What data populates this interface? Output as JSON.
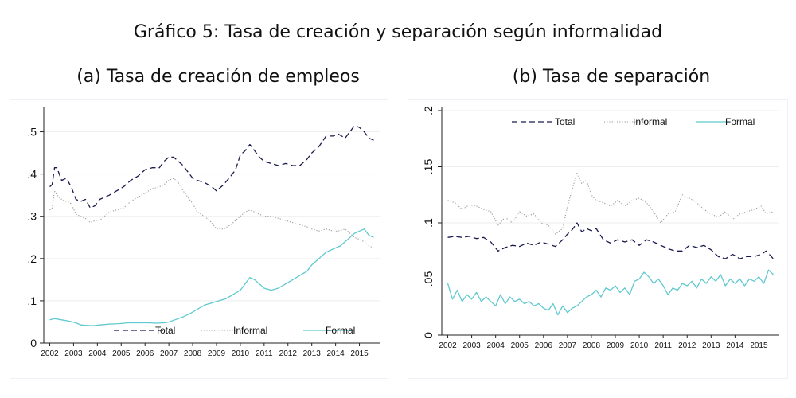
{
  "header": {
    "title": "Gráfico 5: Tasa de creación y separación según informalidad"
  },
  "colors": {
    "total": "#1a1a4e",
    "informal": "#9a9a9a",
    "formal": "#5fc9cf",
    "grid": "#eeeeee"
  },
  "chart_data": [
    {
      "type": "line",
      "title": "(a) Tasa de creación de empleos",
      "xlabel": "",
      "ylabel": "",
      "xlim": [
        2001.75,
        2015.85
      ],
      "ylim": [
        0,
        0.55
      ],
      "yticks": [
        0,
        0.1,
        0.2,
        0.3,
        0.4,
        0.5
      ],
      "ytick_labels": [
        "0",
        ".1",
        ".2",
        ".3",
        ".4",
        ".5"
      ],
      "xticks": [
        2002,
        2003,
        2004,
        2005,
        2006,
        2007,
        2008,
        2009,
        2010,
        2011,
        2012,
        2013,
        2014,
        2015
      ],
      "xtick_labels": [
        "2002",
        "2003",
        "2004",
        "2005",
        "2006",
        "2007",
        "2008",
        "2009",
        "2010",
        "2011",
        "2012",
        "2013",
        "2014",
        "2015"
      ],
      "legend": {
        "position": "bottom",
        "entries": [
          "Total",
          "Informal",
          "Formal"
        ]
      },
      "series": [
        {
          "name": "Total",
          "style": "dashed",
          "color_key": "total",
          "x": [
            2002.0,
            2002.1,
            2002.2,
            2002.3,
            2002.5,
            2002.7,
            2002.9,
            2003.1,
            2003.3,
            2003.5,
            2003.7,
            2003.9,
            2004.1,
            2004.3,
            2004.5,
            2004.8,
            2005.1,
            2005.4,
            2005.7,
            2006.0,
            2006.3,
            2006.6,
            2006.8,
            2007.0,
            2007.2,
            2007.4,
            2007.6,
            2007.8,
            2008.0,
            2008.2,
            2008.5,
            2008.8,
            2009.0,
            2009.3,
            2009.6,
            2009.8,
            2010.0,
            2010.2,
            2010.4,
            2010.6,
            2010.8,
            2011.0,
            2011.3,
            2011.6,
            2011.9,
            2012.2,
            2012.5,
            2012.8,
            2013.0,
            2013.3,
            2013.6,
            2013.9,
            2014.1,
            2014.4,
            2014.6,
            2014.8,
            2015.0,
            2015.2,
            2015.4,
            2015.6
          ],
          "values": [
            0.37,
            0.375,
            0.415,
            0.415,
            0.385,
            0.39,
            0.37,
            0.34,
            0.335,
            0.34,
            0.32,
            0.325,
            0.34,
            0.345,
            0.35,
            0.36,
            0.37,
            0.385,
            0.395,
            0.41,
            0.415,
            0.415,
            0.43,
            0.44,
            0.44,
            0.43,
            0.42,
            0.405,
            0.39,
            0.385,
            0.38,
            0.37,
            0.36,
            0.375,
            0.395,
            0.41,
            0.445,
            0.455,
            0.47,
            0.455,
            0.44,
            0.43,
            0.425,
            0.42,
            0.425,
            0.42,
            0.42,
            0.435,
            0.45,
            0.465,
            0.49,
            0.49,
            0.495,
            0.485,
            0.5,
            0.515,
            0.51,
            0.5,
            0.485,
            0.48
          ]
        },
        {
          "name": "Informal",
          "style": "dotted",
          "color_key": "informal",
          "x": [
            2002.0,
            2002.1,
            2002.2,
            2002.3,
            2002.5,
            2002.7,
            2002.9,
            2003.1,
            2003.3,
            2003.5,
            2003.7,
            2003.9,
            2004.1,
            2004.3,
            2004.5,
            2004.8,
            2005.1,
            2005.4,
            2005.7,
            2006.0,
            2006.3,
            2006.6,
            2006.8,
            2007.0,
            2007.2,
            2007.4,
            2007.6,
            2007.8,
            2008.0,
            2008.2,
            2008.5,
            2008.8,
            2009.0,
            2009.3,
            2009.6,
            2009.8,
            2010.0,
            2010.2,
            2010.4,
            2010.6,
            2010.8,
            2011.0,
            2011.3,
            2011.6,
            2011.9,
            2012.2,
            2012.5,
            2012.8,
            2013.0,
            2013.3,
            2013.6,
            2013.9,
            2014.1,
            2014.4,
            2014.6,
            2014.8,
            2015.0,
            2015.2,
            2015.4,
            2015.6
          ],
          "values": [
            0.315,
            0.32,
            0.36,
            0.35,
            0.34,
            0.335,
            0.33,
            0.305,
            0.3,
            0.295,
            0.285,
            0.29,
            0.29,
            0.3,
            0.31,
            0.315,
            0.32,
            0.335,
            0.345,
            0.355,
            0.365,
            0.37,
            0.375,
            0.385,
            0.39,
            0.38,
            0.36,
            0.345,
            0.33,
            0.31,
            0.3,
            0.285,
            0.27,
            0.27,
            0.28,
            0.29,
            0.3,
            0.31,
            0.315,
            0.31,
            0.305,
            0.3,
            0.3,
            0.295,
            0.29,
            0.285,
            0.28,
            0.275,
            0.27,
            0.265,
            0.27,
            0.265,
            0.265,
            0.27,
            0.26,
            0.25,
            0.245,
            0.24,
            0.23,
            0.225
          ]
        },
        {
          "name": "Formal",
          "style": "solid",
          "color_key": "formal",
          "x": [
            2002.0,
            2002.2,
            2002.5,
            2002.8,
            2003.1,
            2003.3,
            2003.5,
            2003.8,
            2004.1,
            2004.5,
            2004.9,
            2005.3,
            2005.7,
            2006.1,
            2006.5,
            2006.8,
            2007.0,
            2007.3,
            2007.6,
            2007.9,
            2008.2,
            2008.5,
            2008.8,
            2009.1,
            2009.4,
            2009.7,
            2010.0,
            2010.2,
            2010.4,
            2010.6,
            2010.8,
            2011.0,
            2011.3,
            2011.6,
            2011.9,
            2012.2,
            2012.5,
            2012.8,
            2013.0,
            2013.2,
            2013.4,
            2013.6,
            2013.8,
            2014.0,
            2014.2,
            2014.4,
            2014.6,
            2014.8,
            2015.0,
            2015.2,
            2015.4,
            2015.6
          ],
          "values": [
            0.055,
            0.058,
            0.055,
            0.052,
            0.048,
            0.043,
            0.042,
            0.041,
            0.043,
            0.045,
            0.046,
            0.048,
            0.048,
            0.048,
            0.047,
            0.048,
            0.05,
            0.056,
            0.062,
            0.07,
            0.08,
            0.09,
            0.095,
            0.1,
            0.105,
            0.115,
            0.125,
            0.14,
            0.155,
            0.15,
            0.14,
            0.13,
            0.125,
            0.13,
            0.14,
            0.15,
            0.16,
            0.17,
            0.185,
            0.195,
            0.205,
            0.215,
            0.22,
            0.225,
            0.23,
            0.24,
            0.25,
            0.26,
            0.265,
            0.27,
            0.255,
            0.25
          ]
        }
      ]
    },
    {
      "type": "line",
      "title": "(b) Tasa de separación",
      "xlabel": "",
      "ylabel": "",
      "xlim": [
        2001.75,
        2015.85
      ],
      "ylim": [
        0,
        0.2
      ],
      "yticks": [
        0,
        0.05,
        0.1,
        0.15,
        0.2
      ],
      "ytick_labels": [
        "0",
        ".05",
        ".1",
        ".15",
        ".2"
      ],
      "xticks": [
        2002,
        2003,
        2004,
        2005,
        2006,
        2007,
        2008,
        2009,
        2010,
        2011,
        2012,
        2013,
        2014,
        2015
      ],
      "xtick_labels": [
        "2002",
        "2003",
        "2004",
        "2005",
        "2006",
        "2007",
        "2008",
        "2009",
        "2010",
        "2011",
        "2012",
        "2013",
        "2014",
        "2015"
      ],
      "legend": {
        "position": "top",
        "entries": [
          "Total",
          "Informal",
          "Formal"
        ]
      },
      "series": [
        {
          "name": "Total",
          "style": "dashed",
          "color_key": "total",
          "x": [
            2002.0,
            2002.3,
            2002.6,
            2002.9,
            2003.2,
            2003.5,
            2003.8,
            2004.1,
            2004.4,
            2004.7,
            2005.0,
            2005.3,
            2005.6,
            2005.9,
            2006.2,
            2006.5,
            2006.8,
            2007.0,
            2007.2,
            2007.4,
            2007.6,
            2007.8,
            2008.0,
            2008.2,
            2008.5,
            2008.8,
            2009.1,
            2009.4,
            2009.7,
            2010.0,
            2010.3,
            2010.6,
            2010.9,
            2011.2,
            2011.5,
            2011.8,
            2012.1,
            2012.4,
            2012.7,
            2013.0,
            2013.3,
            2013.6,
            2013.9,
            2014.2,
            2014.5,
            2014.8,
            2015.1,
            2015.3,
            2015.6
          ],
          "values": [
            0.087,
            0.088,
            0.087,
            0.088,
            0.086,
            0.087,
            0.083,
            0.075,
            0.078,
            0.08,
            0.079,
            0.082,
            0.08,
            0.083,
            0.081,
            0.079,
            0.085,
            0.09,
            0.094,
            0.1,
            0.092,
            0.095,
            0.093,
            0.095,
            0.085,
            0.082,
            0.085,
            0.083,
            0.085,
            0.08,
            0.085,
            0.083,
            0.08,
            0.077,
            0.075,
            0.075,
            0.08,
            0.078,
            0.08,
            0.076,
            0.07,
            0.068,
            0.072,
            0.068,
            0.07,
            0.07,
            0.072,
            0.075,
            0.068
          ]
        },
        {
          "name": "Informal",
          "style": "dotted",
          "color_key": "informal",
          "x": [
            2002.0,
            2002.3,
            2002.6,
            2002.9,
            2003.2,
            2003.5,
            2003.8,
            2004.1,
            2004.4,
            2004.7,
            2005.0,
            2005.3,
            2005.6,
            2005.9,
            2006.2,
            2006.5,
            2006.8,
            2007.0,
            2007.2,
            2007.4,
            2007.6,
            2007.8,
            2008.0,
            2008.2,
            2008.5,
            2008.8,
            2009.1,
            2009.4,
            2009.7,
            2010.0,
            2010.3,
            2010.6,
            2010.9,
            2011.2,
            2011.5,
            2011.8,
            2012.1,
            2012.4,
            2012.7,
            2013.0,
            2013.3,
            2013.6,
            2013.9,
            2014.2,
            2014.5,
            2014.8,
            2015.1,
            2015.3,
            2015.6
          ],
          "values": [
            0.12,
            0.118,
            0.112,
            0.116,
            0.115,
            0.112,
            0.11,
            0.098,
            0.105,
            0.1,
            0.11,
            0.106,
            0.108,
            0.1,
            0.098,
            0.09,
            0.095,
            0.115,
            0.13,
            0.145,
            0.135,
            0.138,
            0.125,
            0.12,
            0.118,
            0.115,
            0.12,
            0.115,
            0.12,
            0.122,
            0.118,
            0.11,
            0.1,
            0.108,
            0.11,
            0.125,
            0.122,
            0.118,
            0.112,
            0.108,
            0.105,
            0.11,
            0.103,
            0.108,
            0.11,
            0.112,
            0.115,
            0.108,
            0.11
          ]
        },
        {
          "name": "Formal",
          "style": "solid",
          "color_key": "formal",
          "x": [
            2002.0,
            2002.2,
            2002.4,
            2002.6,
            2002.8,
            2003.0,
            2003.2,
            2003.4,
            2003.6,
            2003.8,
            2004.0,
            2004.2,
            2004.4,
            2004.6,
            2004.8,
            2005.0,
            2005.2,
            2005.4,
            2005.6,
            2005.8,
            2006.0,
            2006.2,
            2006.4,
            2006.6,
            2006.8,
            2007.0,
            2007.2,
            2007.4,
            2007.6,
            2007.8,
            2008.0,
            2008.2,
            2008.4,
            2008.6,
            2008.8,
            2009.0,
            2009.2,
            2009.4,
            2009.6,
            2009.8,
            2010.0,
            2010.2,
            2010.4,
            2010.6,
            2010.8,
            2011.0,
            2011.2,
            2011.4,
            2011.6,
            2011.8,
            2012.0,
            2012.2,
            2012.4,
            2012.6,
            2012.8,
            2013.0,
            2013.2,
            2013.4,
            2013.6,
            2013.8,
            2014.0,
            2014.2,
            2014.4,
            2014.6,
            2014.8,
            2015.0,
            2015.2,
            2015.4,
            2015.6
          ],
          "values": [
            0.046,
            0.032,
            0.04,
            0.03,
            0.036,
            0.032,
            0.038,
            0.03,
            0.034,
            0.03,
            0.026,
            0.036,
            0.028,
            0.034,
            0.03,
            0.032,
            0.028,
            0.03,
            0.026,
            0.028,
            0.024,
            0.022,
            0.028,
            0.018,
            0.026,
            0.02,
            0.024,
            0.026,
            0.03,
            0.034,
            0.036,
            0.04,
            0.034,
            0.042,
            0.04,
            0.044,
            0.038,
            0.042,
            0.036,
            0.048,
            0.05,
            0.056,
            0.052,
            0.046,
            0.05,
            0.044,
            0.036,
            0.042,
            0.04,
            0.046,
            0.044,
            0.048,
            0.042,
            0.05,
            0.046,
            0.052,
            0.048,
            0.054,
            0.044,
            0.05,
            0.046,
            0.05,
            0.044,
            0.05,
            0.048,
            0.052,
            0.046,
            0.058,
            0.054
          ]
        }
      ]
    }
  ]
}
